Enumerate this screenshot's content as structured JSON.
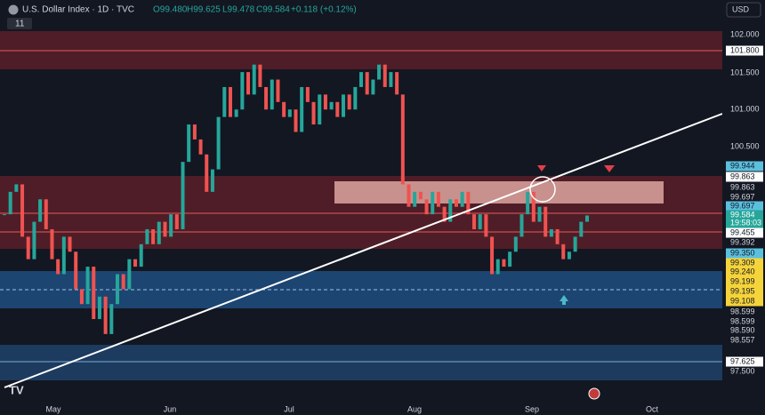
{
  "header": {
    "title": "U.S. Dollar Index · 1D · TVC",
    "open": "O99.480",
    "high": "H99.625",
    "low": "L99.478",
    "close": "C99.584",
    "change": "+0.118 (+0.12%)",
    "indicators": "11",
    "currency": "USD"
  },
  "x_labels": [
    "May",
    "Jun",
    "Jul",
    "Aug",
    "Sep",
    "Oct"
  ],
  "price_labels": [
    "102.000",
    "101.800",
    "101.500",
    "101.000",
    "100.500",
    "99.944",
    "99.863",
    "99.863",
    "99.697",
    "99.697",
    "99.584",
    "19:58:03",
    "99.455",
    "99.392",
    "99.350",
    "99.309",
    "99.240",
    "99.199",
    "99.195",
    "99.108",
    "98.599",
    "98.599",
    "98.590",
    "98.557",
    "97.625",
    "97.500"
  ],
  "chart": {
    "ylim": [
      97.5,
      102.0
    ],
    "closes": [
      99.6,
      99.9,
      100.0,
      99.3,
      99.0,
      99.5,
      99.8,
      99.4,
      99.0,
      98.8,
      99.3,
      99.1,
      98.6,
      98.4,
      98.9,
      98.2,
      98.5,
      98.0,
      98.4,
      98.8,
      98.6,
      99.0,
      98.9,
      99.2,
      99.4,
      99.2,
      99.5,
      99.3,
      99.6,
      99.4,
      100.3,
      100.8,
      100.6,
      100.4,
      99.9,
      100.2,
      100.9,
      101.3,
      100.9,
      101.0,
      101.5,
      101.2,
      101.6,
      101.3,
      101.0,
      101.4,
      101.1,
      100.9,
      101.0,
      100.7,
      101.3,
      101.1,
      100.8,
      101.2,
      101.0,
      101.1,
      100.9,
      101.2,
      101.0,
      101.3,
      101.5,
      101.2,
      101.4,
      101.6,
      101.3,
      101.5,
      101.2,
      100.0,
      99.7,
      99.9,
      99.8,
      99.6,
      99.9,
      99.7,
      99.5,
      99.8,
      99.7,
      99.9,
      99.6,
      99.4,
      99.6,
      99.3,
      98.8,
      99.0,
      98.9,
      99.1,
      99.3,
      99.6,
      99.9,
      99.5,
      99.7,
      99.3,
      99.4,
      99.2,
      99.0,
      99.1,
      99.3,
      99.5,
      99.584
    ]
  }
}
